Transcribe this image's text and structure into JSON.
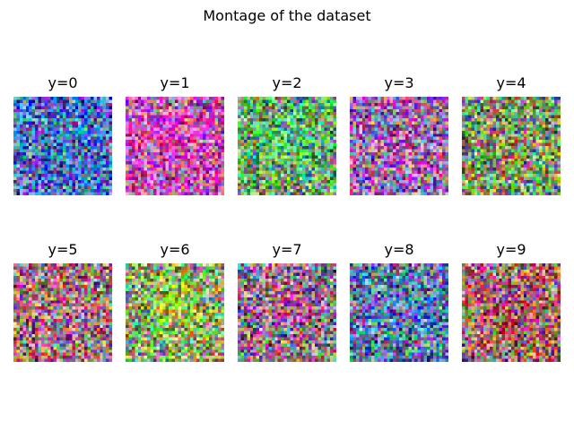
{
  "title": "Montage of the dataset",
  "panels": [
    {
      "label": "y=0",
      "tint": "#4a6acc",
      "blob": "#3aa85a",
      "blob_strength": 0.25
    },
    {
      "label": "y=1",
      "tint": "#c85ab0",
      "blob": "#e040b8",
      "blob_strength": 0.85
    },
    {
      "label": "y=2",
      "tint": "#6aa66a",
      "blob": "#40d080",
      "blob_strength": 0.45
    },
    {
      "label": "y=3",
      "tint": "#9a6aa8",
      "blob": "#c850a0",
      "blob_strength": 0.35
    },
    {
      "label": "y=4",
      "tint": "#7a9a6a",
      "blob": "#c04848",
      "blob_strength": 0.3
    },
    {
      "label": "y=5",
      "tint": "#9a7a78",
      "blob": "#d04c9c",
      "blob_strength": 0.45
    },
    {
      "label": "y=6",
      "tint": "#8aa070",
      "blob": "#a8e030",
      "blob_strength": 0.8
    },
    {
      "label": "y=7",
      "tint": "#8a7a88",
      "blob": "#d84c8c",
      "blob_strength": 0.65
    },
    {
      "label": "y=8",
      "tint": "#5a7aa8",
      "blob": "#3a6ad8",
      "blob_strength": 0.3
    },
    {
      "label": "y=9",
      "tint": "#a0706e",
      "blob": "#b83848",
      "blob_strength": 0.4
    }
  ]
}
